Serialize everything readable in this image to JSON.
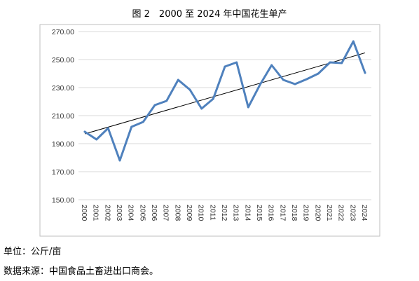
{
  "title": "图 2　2000 至 2024 年中国花生单产",
  "notes": {
    "unit": "单位：公斤/亩",
    "source": "数据来源：中国食品土畜进出口商会。"
  },
  "colors": {
    "series": "#4f81bd",
    "trend": "#000000",
    "grid": "#d9d9d9",
    "frame": "#bfbfbf"
  },
  "chart_data": {
    "type": "line",
    "title": "图 2　2000 至 2024 年中国花生单产",
    "xlabel": "",
    "ylabel": "",
    "ylim": [
      150,
      270
    ],
    "yticks": [
      "150.00",
      "170.00",
      "190.00",
      "210.00",
      "230.00",
      "250.00",
      "270.00"
    ],
    "grid": true,
    "legend": "none",
    "categories": [
      "2000",
      "2001",
      "2002",
      "2003",
      "2004",
      "2005",
      "2006",
      "2007",
      "2008",
      "2009",
      "2010",
      "2011",
      "2012",
      "2013",
      "2014",
      "2015",
      "2016",
      "2017",
      "2018",
      "2019",
      "2020",
      "2021",
      "2022",
      "2023",
      "2024"
    ],
    "series": [
      {
        "name": "",
        "values": [
          198.5,
          193,
          201,
          178,
          202,
          205.5,
          217.5,
          220.5,
          235.5,
          228.5,
          215,
          222,
          245,
          248,
          216,
          232,
          246,
          235.5,
          232.5,
          236,
          240,
          248,
          247.5,
          263,
          240.5
        ]
      }
    ],
    "trendline": {
      "type": "linear"
    }
  }
}
